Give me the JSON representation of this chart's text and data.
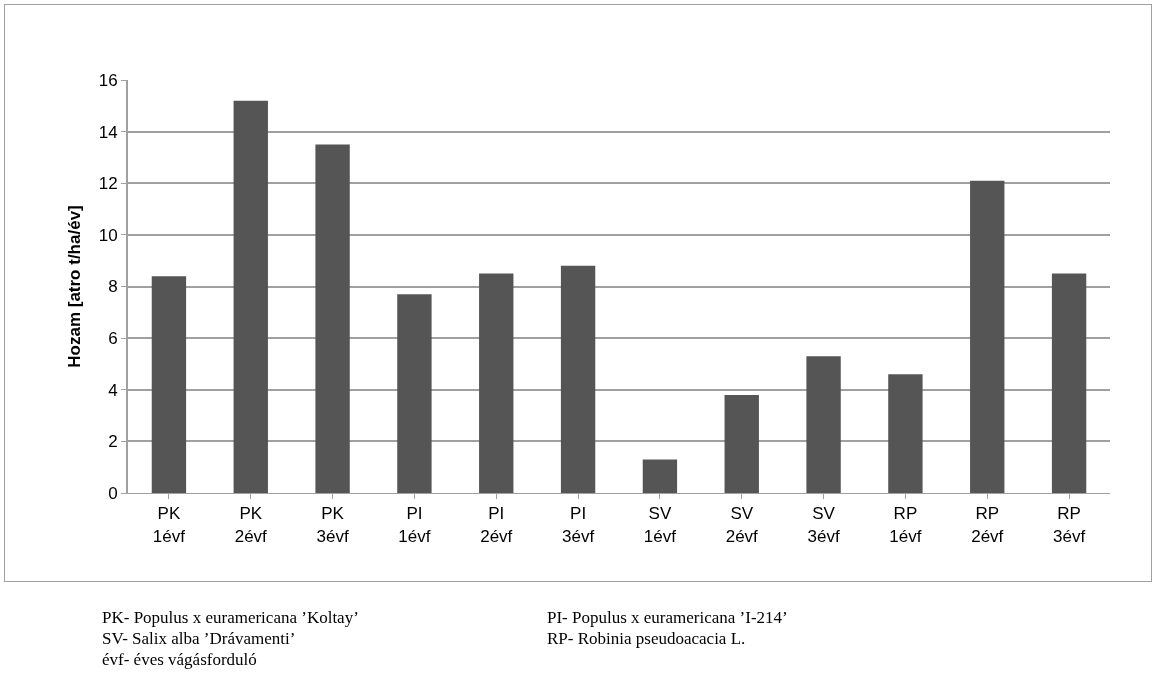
{
  "chart_data": {
    "type": "bar",
    "ylabel": "Hozam [atro t/ha/év]",
    "categories": [
      "PK\n1évf",
      "PK\n2évf",
      "PK\n3évf",
      "PI\n1évf",
      "PI\n2évf",
      "PI\n3évf",
      "SV\n1évf",
      "SV\n2évf",
      "SV\n3évf",
      "RP\n1évf",
      "RP\n2évf",
      "RP\n3évf"
    ],
    "values": [
      8.4,
      15.2,
      13.5,
      7.7,
      8.5,
      8.8,
      1.3,
      3.8,
      5.3,
      4.6,
      12.1,
      8.5
    ],
    "color": "#555555",
    "ylim": [
      0,
      16
    ],
    "yticks": [
      0,
      2,
      4,
      6,
      8,
      10,
      12,
      14,
      16
    ],
    "grid": "y",
    "annotations": [
      "PK- Populus x euramericana ’Koltay’",
      "PI- Populus x euramericana ’I-214’",
      "SV- Salix alba ’Drávamenti’",
      "RP- Robinia pseudoacacia L.",
      "évf- éves vágásforduló"
    ]
  }
}
